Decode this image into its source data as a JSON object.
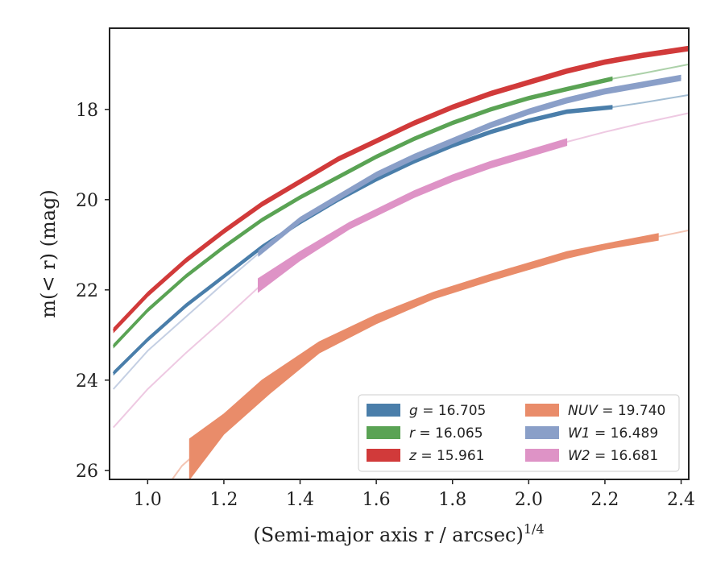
{
  "chart_data": {
    "type": "line",
    "xlabel": "(Semi-major axis r / arcsec)",
    "xlabel_exponent": "1/4",
    "ylabel": "m(< r) (mag)",
    "xlim": [
      0.9,
      2.42
    ],
    "ylim": [
      26.2,
      16.2
    ],
    "y_inverted": true,
    "x_ticks": [
      "1.0",
      "1.2",
      "1.4",
      "1.6",
      "1.8",
      "2.0",
      "2.2",
      "2.4"
    ],
    "y_ticks": [
      "18",
      "20",
      "22",
      "24",
      "26"
    ],
    "grid": false,
    "legend_placement": "lower-right",
    "series": [
      {
        "name": "g = 16.705",
        "var": "g",
        "val": "16.705",
        "color": "#4a7eaa",
        "band": 0.1,
        "solid": [
          [
            0.91,
            23.85
          ],
          [
            1.0,
            23.1
          ],
          [
            1.1,
            22.35
          ],
          [
            1.2,
            21.7
          ],
          [
            1.3,
            21.05
          ],
          [
            1.4,
            20.5
          ],
          [
            1.5,
            20.0
          ],
          [
            1.6,
            19.55
          ],
          [
            1.7,
            19.15
          ],
          [
            1.8,
            18.8
          ],
          [
            1.9,
            18.5
          ],
          [
            2.0,
            18.25
          ],
          [
            2.1,
            18.05
          ],
          [
            2.22,
            17.95
          ]
        ],
        "faint": [
          [
            2.22,
            17.95
          ],
          [
            2.3,
            17.85
          ],
          [
            2.42,
            17.68
          ]
        ]
      },
      {
        "name": "r = 16.065",
        "var": "r",
        "val": "16.065",
        "color": "#5aa354",
        "band": 0.1,
        "solid": [
          [
            0.91,
            23.25
          ],
          [
            1.0,
            22.45
          ],
          [
            1.1,
            21.7
          ],
          [
            1.2,
            21.05
          ],
          [
            1.3,
            20.45
          ],
          [
            1.4,
            19.95
          ],
          [
            1.5,
            19.5
          ],
          [
            1.6,
            19.05
          ],
          [
            1.7,
            18.65
          ],
          [
            1.8,
            18.3
          ],
          [
            1.9,
            18.0
          ],
          [
            2.0,
            17.75
          ],
          [
            2.1,
            17.55
          ],
          [
            2.22,
            17.32
          ]
        ],
        "faint": [
          [
            2.22,
            17.32
          ],
          [
            2.3,
            17.2
          ],
          [
            2.42,
            17.0
          ]
        ]
      },
      {
        "name": "z = 15.961",
        "var": "z",
        "val": "15.961",
        "color": "#d13a3a",
        "band": 0.12,
        "solid": [
          [
            0.91,
            22.9
          ],
          [
            1.0,
            22.1
          ],
          [
            1.1,
            21.35
          ],
          [
            1.2,
            20.7
          ],
          [
            1.3,
            20.1
          ],
          [
            1.4,
            19.6
          ],
          [
            1.5,
            19.1
          ],
          [
            1.6,
            18.7
          ],
          [
            1.7,
            18.3
          ],
          [
            1.8,
            17.95
          ],
          [
            1.9,
            17.65
          ],
          [
            2.0,
            17.4
          ],
          [
            2.1,
            17.15
          ],
          [
            2.2,
            16.95
          ],
          [
            2.3,
            16.8
          ],
          [
            2.42,
            16.65
          ]
        ],
        "faint": []
      },
      {
        "name": "NUV = 19.740",
        "var": "NUV",
        "val": "19.740",
        "color": "#e98c6a",
        "band": 0.0,
        "solid_top": [
          [
            1.11,
            25.3
          ],
          [
            1.2,
            24.75
          ],
          [
            1.3,
            24.0
          ],
          [
            1.45,
            23.15
          ],
          [
            1.6,
            22.55
          ],
          [
            1.75,
            22.05
          ],
          [
            1.9,
            21.65
          ],
          [
            2.0,
            21.4
          ],
          [
            2.1,
            21.15
          ],
          [
            2.2,
            20.98
          ],
          [
            2.34,
            20.75
          ]
        ],
        "solid_bottom": [
          [
            1.11,
            26.2
          ],
          [
            1.2,
            25.2
          ],
          [
            1.32,
            24.3
          ],
          [
            1.45,
            23.4
          ],
          [
            1.6,
            22.75
          ],
          [
            1.75,
            22.2
          ],
          [
            1.9,
            21.8
          ],
          [
            2.0,
            21.55
          ],
          [
            2.1,
            21.3
          ],
          [
            2.2,
            21.1
          ],
          [
            2.34,
            20.9
          ]
        ],
        "faint": [
          [
            1.06,
            26.25
          ],
          [
            1.09,
            25.9
          ],
          [
            1.11,
            25.75
          ]
        ],
        "faint_after": [
          [
            2.34,
            20.82
          ],
          [
            2.42,
            20.68
          ]
        ]
      },
      {
        "name": "W1 = 16.489",
        "var": "W1",
        "val": "16.489",
        "color": "#8a9fc8",
        "band": 0.14,
        "solid": [
          [
            1.29,
            21.2
          ],
          [
            1.4,
            20.45
          ],
          [
            1.5,
            19.95
          ],
          [
            1.6,
            19.45
          ],
          [
            1.7,
            19.05
          ],
          [
            1.8,
            18.7
          ],
          [
            1.9,
            18.35
          ],
          [
            2.0,
            18.05
          ],
          [
            2.1,
            17.8
          ],
          [
            2.2,
            17.6
          ],
          [
            2.3,
            17.45
          ],
          [
            2.4,
            17.3
          ]
        ],
        "faint": [
          [
            0.91,
            24.2
          ],
          [
            1.0,
            23.35
          ],
          [
            1.1,
            22.6
          ],
          [
            1.2,
            21.85
          ],
          [
            1.29,
            21.2
          ]
        ]
      },
      {
        "name": "W2 = 16.681",
        "var": "W2",
        "val": "16.681",
        "color": "#de93c6",
        "band": 0.0,
        "solid_top": [
          [
            1.29,
            21.75
          ],
          [
            1.4,
            21.15
          ],
          [
            1.53,
            20.5
          ],
          [
            1.7,
            19.8
          ],
          [
            1.8,
            19.45
          ],
          [
            1.9,
            19.15
          ],
          [
            2.0,
            18.9
          ],
          [
            2.1,
            18.65
          ]
        ],
        "solid_bottom": [
          [
            1.29,
            22.05
          ],
          [
            1.4,
            21.35
          ],
          [
            1.53,
            20.65
          ],
          [
            1.7,
            19.95
          ],
          [
            1.8,
            19.6
          ],
          [
            1.9,
            19.3
          ],
          [
            2.0,
            19.05
          ],
          [
            2.1,
            18.8
          ]
        ],
        "faint": [
          [
            0.91,
            25.05
          ],
          [
            1.0,
            24.2
          ],
          [
            1.1,
            23.4
          ],
          [
            1.2,
            22.65
          ],
          [
            1.29,
            21.95
          ]
        ],
        "faint_after": [
          [
            2.1,
            18.72
          ],
          [
            2.2,
            18.5
          ],
          [
            2.3,
            18.3
          ],
          [
            2.42,
            18.08
          ]
        ]
      }
    ]
  }
}
